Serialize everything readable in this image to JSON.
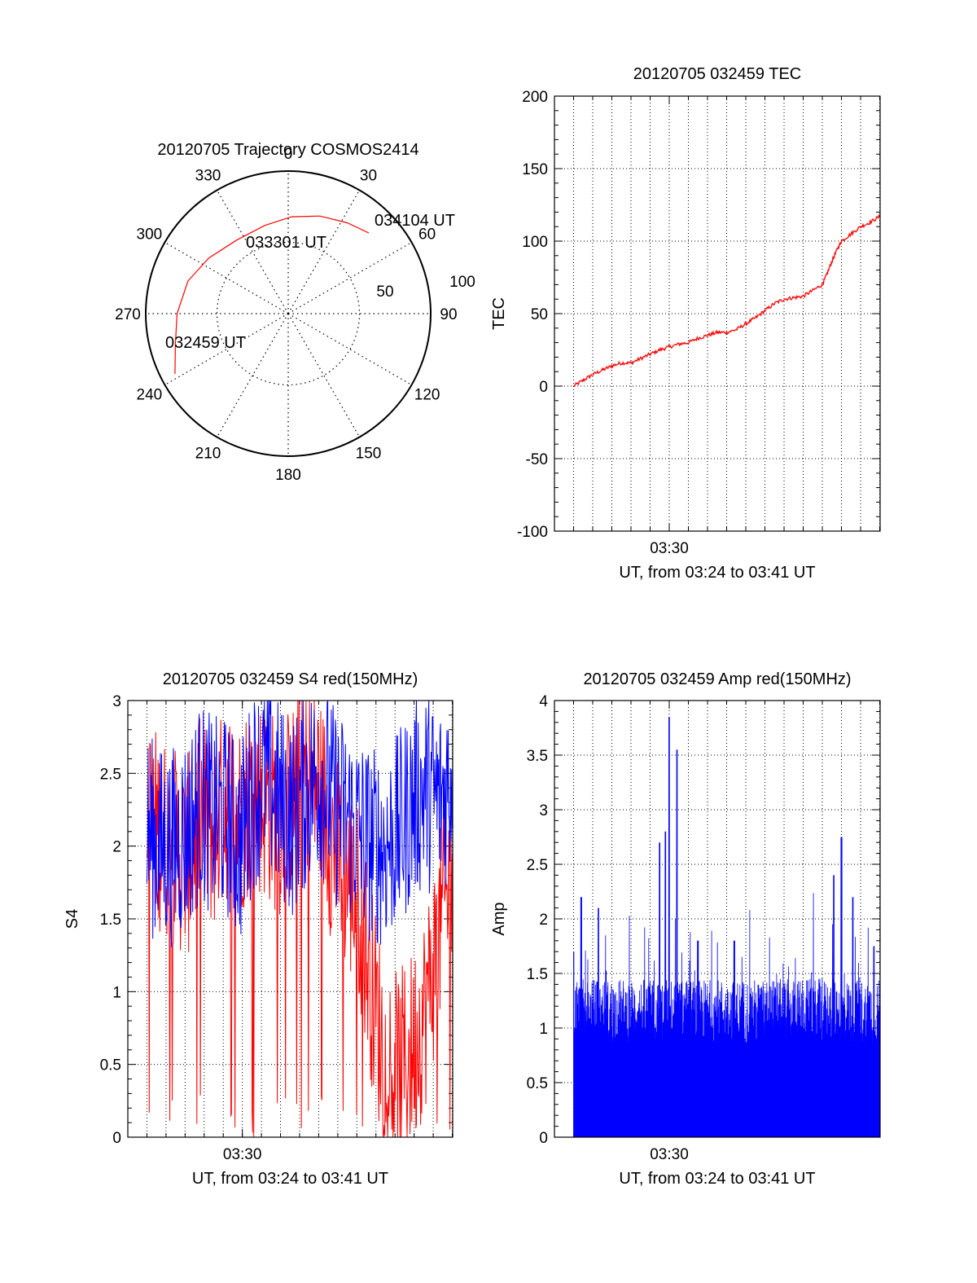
{
  "figure": {
    "trajectory": {
      "title": "20120705 Trajectory COSMOS2414",
      "type": "polar",
      "azimuth_ticks": [
        "0",
        "30",
        "60",
        "90",
        "120",
        "150",
        "180",
        "210",
        "240",
        "270",
        "300",
        "330"
      ],
      "radial_ticks": [
        "50",
        "100"
      ],
      "rlim": [
        0,
        100
      ],
      "series_color": "#ff0000",
      "track": {
        "az": [
          242,
          255,
          270,
          288,
          305,
          325,
          345,
          2,
          18,
          33,
          45
        ],
        "r": [
          90,
          82,
          78,
          74,
          68,
          63,
          64,
          68,
          72,
          76,
          80
        ]
      },
      "labels": [
        {
          "text": "032459 UT",
          "az": 242,
          "r": 90
        },
        {
          "text": "033301 UT",
          "az": 350,
          "r": 55
        },
        {
          "text": "034104 UT",
          "az": 45,
          "r": 80
        }
      ]
    },
    "tec": {
      "title": "20120705 032459 TEC",
      "type": "line",
      "ylabel": "TEC",
      "xtick": "03:30",
      "xlabel": "UT, from 03:24 to 03:41 UT",
      "ylim": [
        -100,
        200
      ],
      "yticks": [
        "-100",
        "-50",
        "0",
        "50",
        "100",
        "150",
        "200"
      ],
      "xrange_min": [
        24,
        41.02
      ],
      "grid": true,
      "series_color": "#ff0000",
      "series": {
        "x": [
          25,
          25.5,
          26,
          26.5,
          27,
          27.5,
          28,
          28.5,
          29,
          29.5,
          30,
          30.5,
          31,
          31.5,
          32,
          32.5,
          33,
          33.5,
          34,
          34.5,
          35,
          35.5,
          36,
          36.5,
          37,
          37.5,
          38,
          38.2,
          38.5,
          38.8,
          39,
          39.5,
          40,
          40.5,
          41
        ],
        "y": [
          0,
          4,
          8,
          11,
          14,
          16,
          16,
          19,
          22,
          25,
          27,
          29,
          30,
          33,
          35,
          37,
          37,
          39,
          43,
          47,
          52,
          57,
          60,
          61,
          62,
          66,
          70,
          76,
          86,
          95,
          100,
          105,
          110,
          113,
          117
        ]
      }
    },
    "s4": {
      "title": "20120705 032459 S4 red(150MHz)",
      "type": "line",
      "ylabel": "S4",
      "xtick": "03:30",
      "xlabel": "UT, from 03:24 to 03:41 UT",
      "ylim": [
        0,
        3
      ],
      "yticks": [
        "0",
        "0.5",
        "1",
        "1.5",
        "2",
        "2.5",
        "3"
      ],
      "xrange_min": [
        24,
        41.02
      ],
      "grid": true,
      "series": [
        {
          "color": "#ff0000",
          "base": [
            2.2,
            2.1,
            2.0,
            1.9,
            2.2,
            2.1,
            2.3,
            2.2,
            2.4,
            2.3,
            2.2,
            2.3,
            2.5,
            2.4,
            2.0,
            1.8,
            1.6,
            1.0,
            0.5,
            0.45,
            0.6,
            0.9,
            1.4,
            1.8
          ]
        },
        {
          "color": "#0000ff",
          "base": [
            2.1,
            2.0,
            2.0,
            2.1,
            2.3,
            2.2,
            2.2,
            2.0,
            2.4,
            2.5,
            2.3,
            2.2,
            2.4,
            2.5,
            2.3,
            2.2,
            2.1,
            2.0,
            2.0,
            2.1,
            2.3,
            2.4,
            2.3,
            2.5
          ]
        }
      ]
    },
    "amp": {
      "title": "20120705 032459 Amp red(150MHz)",
      "type": "line",
      "ylabel": "Amp",
      "xtick": "03:30",
      "xlabel": "UT, from 03:24 to 03:41 UT",
      "ylim": [
        0,
        4
      ],
      "yticks": [
        "0",
        "0.5",
        "1",
        "1.5",
        "2",
        "2.5",
        "3",
        "3.5",
        "4"
      ],
      "xrange_min": [
        24,
        41.02
      ],
      "grid": true,
      "series_color": "#0000ff",
      "peaks": {
        "x": [
          25.0,
          25.4,
          26.3,
          29.5,
          29.8,
          30.0,
          30.4,
          31.5,
          33.4,
          38.6,
          39.0,
          39.6,
          40.7
        ],
        "y": [
          1.7,
          2.2,
          2.1,
          2.7,
          2.8,
          3.85,
          3.55,
          1.8,
          1.8,
          2.4,
          2.75,
          2.2,
          1.75
        ]
      }
    }
  }
}
